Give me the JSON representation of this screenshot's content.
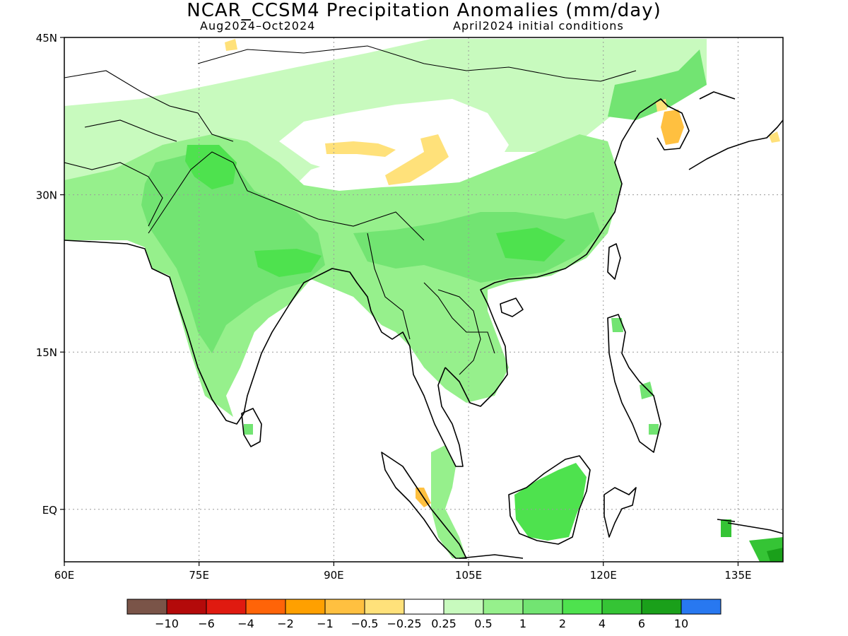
{
  "title": "NCAR_CCSM4 Precipitation Anomalies (mm/day)",
  "subtitle_left": "Aug2024–Oct2024",
  "subtitle_right": "April2024 initial conditions",
  "map": {
    "lon_range": [
      60,
      140
    ],
    "lat_range": [
      -5,
      45
    ],
    "lat_ticks": [
      {
        "value": 45,
        "label": "45N"
      },
      {
        "value": 30,
        "label": "30N"
      },
      {
        "value": 15,
        "label": "15N"
      },
      {
        "value": 0,
        "label": "EQ"
      }
    ],
    "lon_ticks": [
      {
        "value": 60,
        "label": "60E"
      },
      {
        "value": 75,
        "label": "75E"
      },
      {
        "value": 90,
        "label": "90E"
      },
      {
        "value": 105,
        "label": "105E"
      },
      {
        "value": 120,
        "label": "120E"
      },
      {
        "value": 135,
        "label": "135E"
      }
    ],
    "grid": true
  },
  "legend": {
    "colors": [
      "#7a5448",
      "#b40a0a",
      "#e01a10",
      "#ff6408",
      "#ffa000",
      "#ffc040",
      "#ffe17a",
      "#ffffff",
      "#c8fabe",
      "#96f08c",
      "#72e472",
      "#4ee24e",
      "#35c435",
      "#1aa01a",
      "#2878f0"
    ],
    "labels": [
      "−10",
      "−6",
      "−4",
      "−2",
      "−1",
      "−0.5",
      "−0.25",
      "0.25",
      "0.5",
      "1",
      "2",
      "4",
      "6",
      "10"
    ]
  }
}
